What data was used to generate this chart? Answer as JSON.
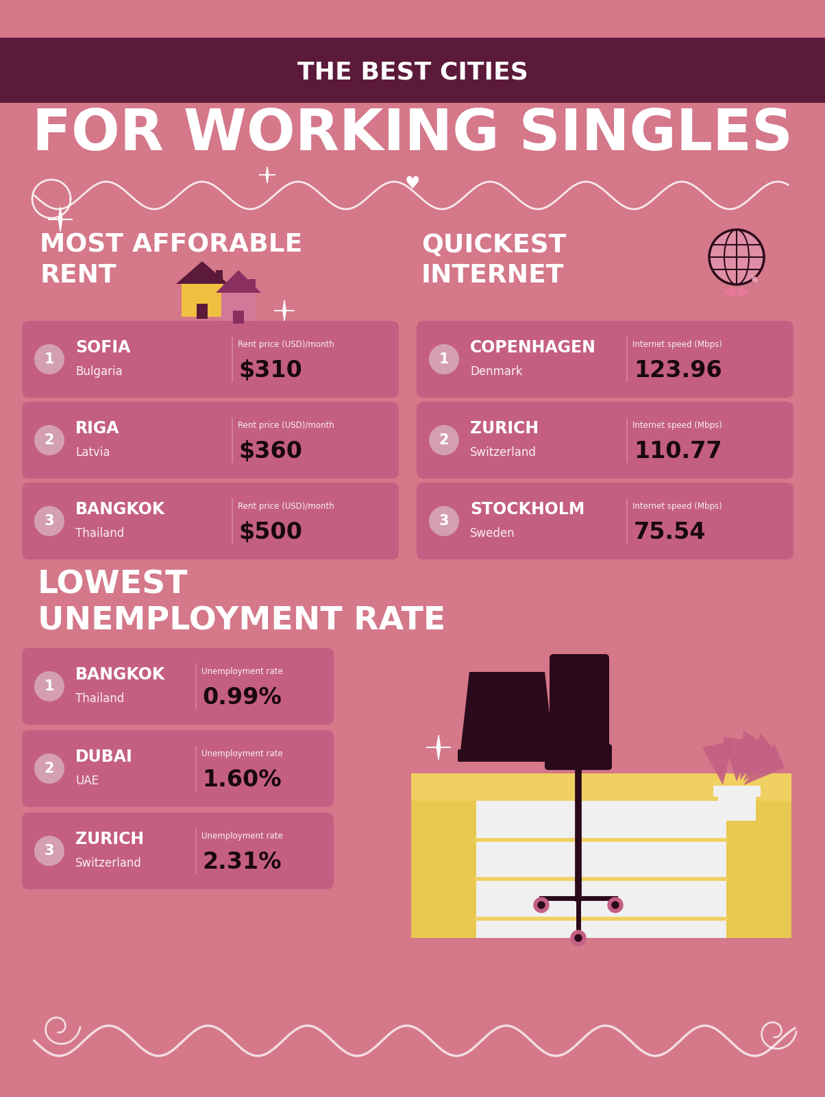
{
  "bg_color": "#d4788a",
  "header_bg_color": "#5c1a3a",
  "title_line1": "THE BEST CITIES",
  "title_line2": "FOR WORKING SINGLES",
  "section1_title": "MOST AFFORABLE\nRENT",
  "section2_title": "QUICKEST\nINTERNET",
  "section3_title": "LOWEST\nUNEMPLOYMENT RATE",
  "rent_data": [
    {
      "rank": "1",
      "city": "SOFIA",
      "country": "Bulgaria",
      "label": "Rent price (USD)/month",
      "value": "$310"
    },
    {
      "rank": "2",
      "city": "RIGA",
      "country": "Latvia",
      "label": "Rent price (USD)/month",
      "value": "$360"
    },
    {
      "rank": "3",
      "city": "BANGKOK",
      "country": "Thailand",
      "label": "Rent price (USD)/month",
      "value": "$500"
    }
  ],
  "internet_data": [
    {
      "rank": "1",
      "city": "COPENHAGEN",
      "country": "Denmark",
      "label": "Internet speed (Mbps)",
      "value": "123.96"
    },
    {
      "rank": "2",
      "city": "ZURICH",
      "country": "Switzerland",
      "label": "Internet speed (Mbps)",
      "value": "110.77"
    },
    {
      "rank": "3",
      "city": "STOCKHOLM",
      "country": "Sweden",
      "label": "Internet speed (Mbps)",
      "value": "75.54"
    }
  ],
  "unemployment_data": [
    {
      "rank": "1",
      "city": "BANGKOK",
      "country": "Thailand",
      "label": "Unemployment rate",
      "value": "0.99%"
    },
    {
      "rank": "2",
      "city": "DUBAI",
      "country": "UAE",
      "label": "Unemployment rate",
      "value": "1.60%"
    },
    {
      "rank": "3",
      "city": "ZURICH",
      "country": "Switzerland",
      "label": "Unemployment rate",
      "value": "2.31%"
    }
  ],
  "card_color": "#c45f83",
  "rank_bubble_color": "#d4a0b0",
  "white": "#ffffff",
  "dark_text": "#1a0810",
  "globe_color": "#2a0a1a",
  "globe_fill": "#e8a0b8",
  "desk_yellow": "#f0d060",
  "desk_yellow_dark": "#e8c850",
  "drawer_white": "#f0f0f0",
  "chair_color": "#2a0a1a",
  "wheel_color": "#c45f83",
  "plant_color": "#c45f83",
  "house_yellow": "#f0c040",
  "house_dark": "#5c1a3a",
  "house_pink": "#d4789a",
  "house_pink_dark": "#8a3060",
  "wave_color": "#ffffff",
  "ribbon_color": "#d4788a"
}
